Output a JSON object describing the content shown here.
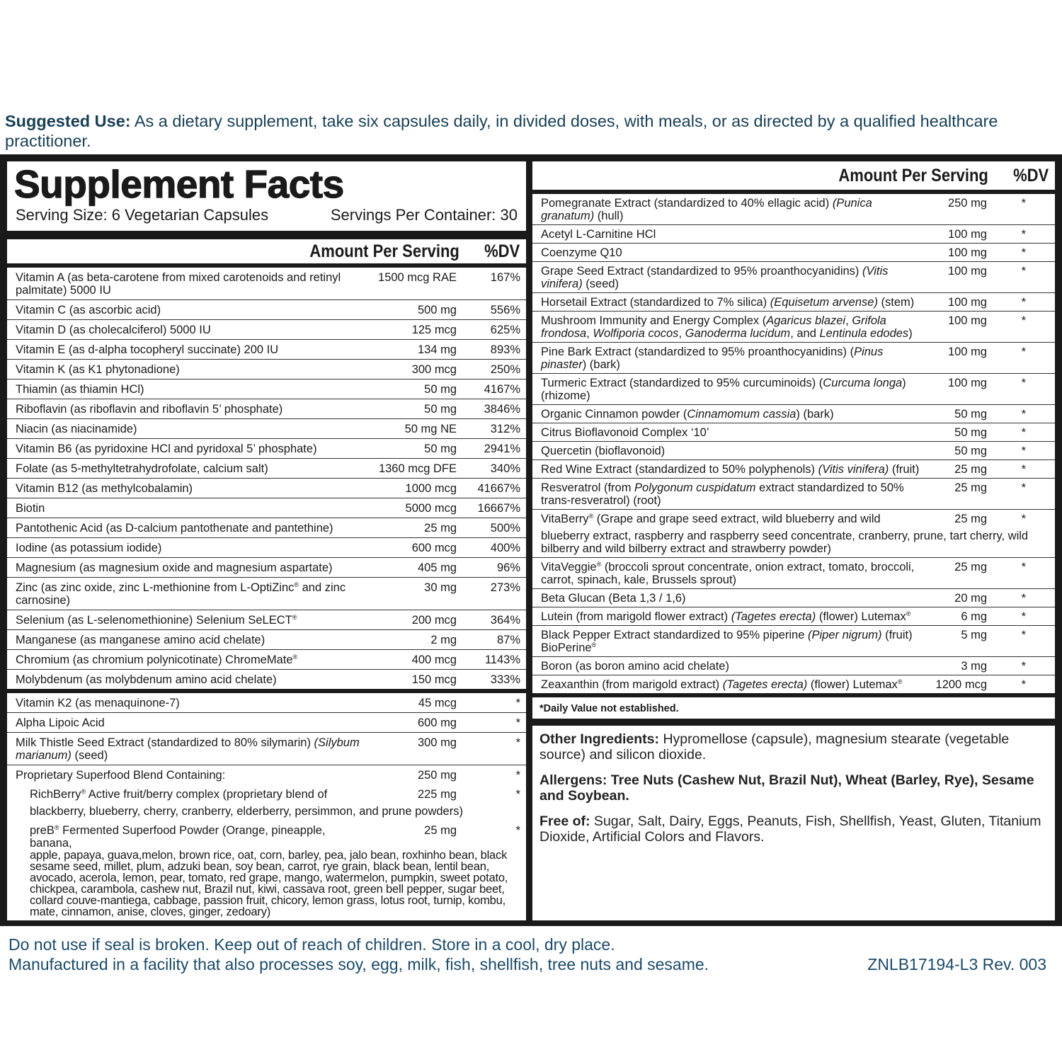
{
  "suggested_use": {
    "label": "Suggested Use:",
    "text": " As a dietary supplement, take six capsules daily, in divided doses, with meals, or as directed by a qualified healthcare practitioner."
  },
  "facts": {
    "title": "Supplement Facts",
    "serving_size": "Serving Size: 6 Vegetarian Capsules",
    "servings_per_container": "Servings Per Container: 30",
    "amount_header": "Amount Per Serving",
    "dv_header": "%DV"
  },
  "left_rows": [
    {
      "name": [
        [
          "Vitamin A (as beta-carotene from mixed carotenoids and retinyl palmitate) 5000 IU"
        ]
      ],
      "amount": "1500 mcg RAE",
      "dv": "167%"
    },
    {
      "name": [
        [
          "Vitamin C (as ascorbic acid)"
        ]
      ],
      "amount": "500 mg",
      "dv": "556%"
    },
    {
      "name": [
        [
          "Vitamin D (as cholecalciferol) 5000 IU"
        ]
      ],
      "amount": "125 mcg",
      "dv": "625%"
    },
    {
      "name": [
        [
          "Vitamin E (as d-alpha tocopheryl succinate) 200 IU"
        ]
      ],
      "amount": "134 mg",
      "dv": "893%"
    },
    {
      "name": [
        [
          "Vitamin K (as K1 phytonadione)"
        ]
      ],
      "amount": "300 mcg",
      "dv": "250%"
    },
    {
      "name": [
        [
          "Thiamin (as thiamin HCl)"
        ]
      ],
      "amount": "50 mg",
      "dv": "4167%"
    },
    {
      "name": [
        [
          "Riboflavin (as riboflavin and riboflavin 5’ phosphate)"
        ]
      ],
      "amount": "50 mg",
      "dv": "3846%"
    },
    {
      "name": [
        [
          "Niacin (as niacinamide)"
        ]
      ],
      "amount": "50 mg NE",
      "dv": "312%"
    },
    {
      "name": [
        [
          "Vitamin B6 (as pyridoxine HCl and pyridoxal 5’ phosphate)"
        ]
      ],
      "amount": "50 mg",
      "dv": "2941%"
    },
    {
      "name": [
        [
          "Folate (as 5-methyltetrahydrofolate, calcium salt)"
        ]
      ],
      "amount": "1360 mcg DFE",
      "dv": "340%"
    },
    {
      "name": [
        [
          "Vitamin B12 (as methylcobalamin)"
        ]
      ],
      "amount": "1000 mcg",
      "dv": "41667%"
    },
    {
      "name": [
        [
          "Biotin"
        ]
      ],
      "amount": "5000 mcg",
      "dv": "16667%"
    },
    {
      "name": [
        [
          "Pantothenic Acid (as D-calcium pantothenate and pantethine)"
        ]
      ],
      "amount": "25 mg",
      "dv": "500%"
    },
    {
      "name": [
        [
          "Iodine (as potassium iodide)"
        ]
      ],
      "amount": "600 mcg",
      "dv": "400%"
    },
    {
      "name": [
        [
          "Magnesium (as magnesium oxide and magnesium aspartate)"
        ]
      ],
      "amount": "405 mg",
      "dv": "96%"
    },
    {
      "name": [
        [
          "Zinc (as zinc oxide, zinc L-methionine from L-OptiZinc"
        ],
        [
          "®",
          "sup"
        ],
        [
          " and zinc carnosine)"
        ]
      ],
      "amount": "30 mg",
      "dv": "273%"
    },
    {
      "name": [
        [
          "Selenium (as L-selenomethionine) Selenium SeLECT"
        ],
        [
          "®",
          "sup"
        ]
      ],
      "amount": "200 mcg",
      "dv": "364%"
    },
    {
      "name": [
        [
          "Manganese (as manganese amino acid chelate)"
        ]
      ],
      "amount": "2 mg",
      "dv": "87%"
    },
    {
      "name": [
        [
          "Chromium (as chromium polynicotinate) ChromeMate"
        ],
        [
          "®",
          "sup"
        ]
      ],
      "amount": "400 mcg",
      "dv": "1143%"
    },
    {
      "name": [
        [
          "Molybdenum (as molybdenum amino acid chelate)"
        ]
      ],
      "amount": "150 mcg",
      "dv": "333%",
      "thick": true
    },
    {
      "name": [
        [
          "Vitamin K2 (as menaquinone-7)"
        ]
      ],
      "amount": "45 mcg",
      "dv": "*"
    },
    {
      "name": [
        [
          "Alpha Lipoic Acid"
        ]
      ],
      "amount": "600 mg",
      "dv": "*"
    },
    {
      "name": [
        [
          "Milk Thistle Seed Extract (standardized to 80% silymarin) "
        ],
        [
          "(Silybum marianum)",
          "i"
        ],
        [
          " (seed)"
        ]
      ],
      "amount": "300 mg",
      "dv": "*"
    },
    {
      "name": [
        [
          "Proprietary Superfood Blend Containing:"
        ]
      ],
      "amount": "250 mg",
      "dv": "*",
      "noline": true
    },
    {
      "name": [
        [
          "RichBerry"
        ],
        [
          "®",
          "sup"
        ],
        [
          " Active fruit/berry complex (proprietary blend of"
        ]
      ],
      "amount": "225 mg",
      "dv": "*",
      "noline": true,
      "sub": true,
      "tail": "blackberry, blueberry, cherry, cranberry, elderberry, persimmon, and prune powders)"
    },
    {
      "name": [
        [
          "preB"
        ],
        [
          "®",
          "sup"
        ],
        [
          " Fermented Superfood Powder (Orange, pineapple, banana,"
        ]
      ],
      "amount": "25 mg",
      "dv": "*",
      "noline": true,
      "sub": true,
      "dense": true,
      "tail": "apple, papaya, guava,melon, brown rice, oat, corn, barley, pea, jalo bean, roxhinho bean, black sesame seed, millet, plum, adzuki bean, soy bean, carrot, rye grain, black bean, lentil bean, avocado, acerola, lemon, pear, tomato, red grape, mango, watermelon, pumpkin, sweet potato, chickpea, carambola, cashew nut, Brazil nut, kiwi, cassava root, green bell pepper, sugar beet, collard couve-mantiega, cabbage, passion fruit, chicory, lemon grass, lotus root, turnip, kombu, mate, cinnamon, anise, cloves, ginger, zedoary)"
    }
  ],
  "right_rows": [
    {
      "name": [
        [
          "Pomegranate Extract (standardized to 40% ellagic acid) "
        ],
        [
          "(Punica granatum)",
          "i"
        ],
        [
          " (hull)"
        ]
      ],
      "amount": "250 mg",
      "dv": "*"
    },
    {
      "name": [
        [
          "Acetyl L-Carnitine HCl"
        ]
      ],
      "amount": "100 mg",
      "dv": "*"
    },
    {
      "name": [
        [
          "Coenzyme Q10"
        ]
      ],
      "amount": "100 mg",
      "dv": "*"
    },
    {
      "name": [
        [
          "Grape Seed Extract (standardized to 95% proanthocyanidins) "
        ],
        [
          "(Vitis vinifera)",
          "i"
        ],
        [
          " (seed)"
        ]
      ],
      "amount": "100 mg",
      "dv": "*"
    },
    {
      "name": [
        [
          "Horsetail Extract (standardized to 7% silica) "
        ],
        [
          "(Equisetum arvense)",
          "i"
        ],
        [
          " (stem)"
        ]
      ],
      "amount": "100 mg",
      "dv": "*"
    },
    {
      "name": [
        [
          "Mushroom Immunity and Energy Complex ("
        ],
        [
          "Agaricus blazei",
          "i"
        ],
        [
          ", "
        ],
        [
          "Grifola frondosa",
          "i"
        ],
        [
          ", "
        ],
        [
          "Wolfiporia cocos",
          "i"
        ],
        [
          ", "
        ],
        [
          "Ganoderma lucidum",
          "i"
        ],
        [
          ", and "
        ],
        [
          "Lentinula edodes",
          "i"
        ],
        [
          ")"
        ]
      ],
      "amount": "100 mg",
      "dv": "*"
    },
    {
      "name": [
        [
          "Pine Bark Extract (standardized to 95% proanthocyanidins) ("
        ],
        [
          "Pinus pinaster",
          "i"
        ],
        [
          ") (bark)"
        ]
      ],
      "amount": "100 mg",
      "dv": "*"
    },
    {
      "name": [
        [
          "Turmeric Extract (standardized to 95% curcuminoids) ("
        ],
        [
          "Curcuma longa",
          "i"
        ],
        [
          ") (rhizome)"
        ]
      ],
      "amount": "100 mg",
      "dv": "*"
    },
    {
      "name": [
        [
          "Organic Cinnamon powder ("
        ],
        [
          "Cinnamomum cassia",
          "i"
        ],
        [
          ") (bark)"
        ]
      ],
      "amount": "50 mg",
      "dv": "*"
    },
    {
      "name": [
        [
          "Citrus Bioflavonoid Complex ‘10’"
        ]
      ],
      "amount": "50 mg",
      "dv": "*"
    },
    {
      "name": [
        [
          "Quercetin (bioflavonoid)"
        ]
      ],
      "amount": "50 mg",
      "dv": "*"
    },
    {
      "name": [
        [
          "Red Wine Extract (standardized to 50% polyphenols) "
        ],
        [
          "(Vitis vinifera)",
          "i"
        ],
        [
          " (fruit)"
        ]
      ],
      "amount": "25 mg",
      "dv": "*"
    },
    {
      "name": [
        [
          "Resveratrol (from "
        ],
        [
          "Polygonum cuspidatum",
          "i"
        ],
        [
          " extract standardized to 50% trans-resveratrol) (root)"
        ]
      ],
      "amount": "25 mg",
      "dv": "*"
    },
    {
      "name": [
        [
          "VitaBerry"
        ],
        [
          "®",
          "sup"
        ],
        [
          " (Grape and grape seed extract, wild blueberry and wild"
        ]
      ],
      "amount": "25 mg",
      "dv": "*",
      "tail": "blueberry extract, raspberry and raspberry seed concentrate, cranberry, prune, tart cherry, wild bilberry and wild bilberry extract and strawberry powder)"
    },
    {
      "name": [
        [
          "VitaVeggie"
        ],
        [
          "®",
          "sup"
        ],
        [
          " (broccoli sprout concentrate, onion extract, tomato, broccoli, carrot, spinach, kale, Brussels sprout)"
        ]
      ],
      "amount": "25 mg",
      "dv": "*"
    },
    {
      "name": [
        [
          "Beta Glucan (Beta 1,3 / 1,6)"
        ]
      ],
      "amount": "20 mg",
      "dv": "*"
    },
    {
      "name": [
        [
          "Lutein (from marigold flower extract) "
        ],
        [
          "(Tagetes erecta)",
          "i"
        ],
        [
          " (flower) Lutemax"
        ],
        [
          "®",
          "sup"
        ]
      ],
      "amount": "6 mg",
      "dv": "*"
    },
    {
      "name": [
        [
          "Black Pepper Extract standardized to 95% piperine "
        ],
        [
          "(Piper nigrum)",
          "i"
        ],
        [
          " (fruit) BioPerine"
        ],
        [
          "®",
          "sup"
        ]
      ],
      "amount": "5 mg",
      "dv": "*"
    },
    {
      "name": [
        [
          "Boron (as boron amino acid chelate)"
        ]
      ],
      "amount": "3 mg",
      "dv": "*"
    },
    {
      "name": [
        [
          "Zeaxanthin (from marigold extract) "
        ],
        [
          "(Tagetes erecta)",
          "i"
        ],
        [
          " (flower) Lutemax"
        ],
        [
          "®",
          "sup"
        ]
      ],
      "amount": "1200 mcg",
      "dv": "*",
      "thick": true
    }
  ],
  "dv_note": "*Daily Value not established.",
  "other": {
    "label": "Other Ingredients:",
    "text": "  Hypromellose (capsule), magnesium stearate (vegetable source) and silicon dioxide."
  },
  "allergens": {
    "label": "Allergens:",
    "text": " Tree Nuts (Cashew Nut, Brazil Nut), Wheat (Barley, Rye), Sesame and Soybean."
  },
  "free_of": {
    "label": "Free of:",
    "text": " Sugar, Salt, Dairy, Eggs, Peanuts, Fish, Shellfish, Yeast, Gluten, Titanium Dioxide, Artificial Colors and Flavors."
  },
  "footer": {
    "line1": "Do not use if seal is broken. Keep out of reach of children. Store in a cool, dry place.",
    "line2": "Manufactured in a facility that also processes soy, egg, milk, fish, shellfish, tree nuts and sesame.",
    "code": "ZNLB17194-L3 Rev. 003"
  }
}
